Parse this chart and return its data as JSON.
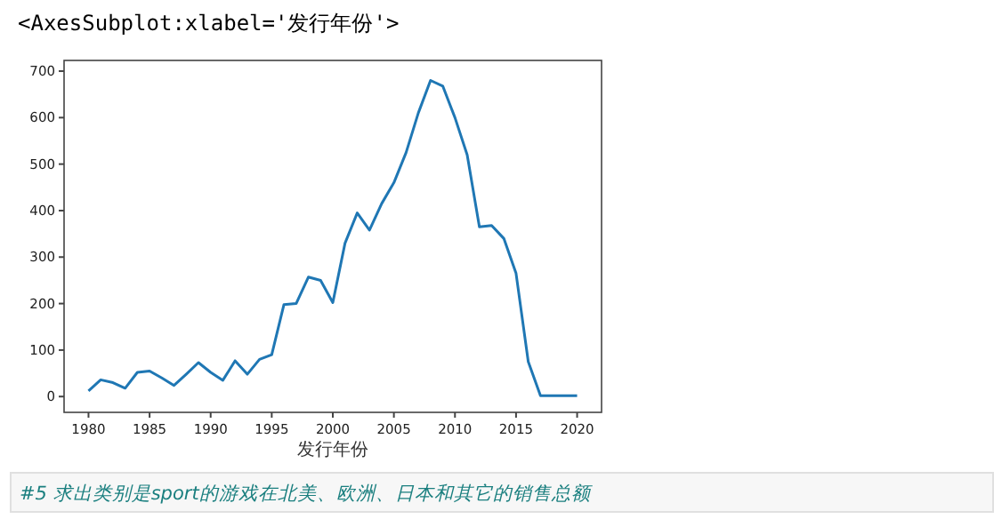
{
  "chart_data": {
    "type": "line",
    "title": "<AxesSubplot:xlabel='发行年份'>",
    "xlabel": "发行年份",
    "annotations": [
      "#5 求出类别是sport的游戏在北美、欧洲、日本和其它的销售总额"
    ],
    "x": [
      1980,
      1981,
      1982,
      1983,
      1984,
      1985,
      1986,
      1987,
      1988,
      1989,
      1990,
      1991,
      1992,
      1993,
      1994,
      1995,
      1996,
      1997,
      1998,
      1999,
      2000,
      2001,
      2002,
      2003,
      2004,
      2005,
      2006,
      2007,
      2008,
      2009,
      2010,
      2011,
      2012,
      2013,
      2014,
      2015,
      2016,
      2017,
      2018,
      2019,
      2020
    ],
    "series": [
      {
        "color": "#1f77b4",
        "values": [
          12,
          36,
          30,
          18,
          52,
          55,
          40,
          24,
          48,
          73,
          52,
          35,
          77,
          48,
          80,
          90,
          198,
          200,
          257,
          250,
          202,
          330,
          395,
          358,
          415,
          460,
          525,
          610,
          680,
          668,
          600,
          520,
          365,
          368,
          340,
          265,
          75,
          2,
          2,
          2,
          2
        ]
      }
    ],
    "xlim": [
      1978,
      2022
    ],
    "xticks": [
      1980,
      1985,
      1990,
      1995,
      2000,
      2005,
      2010,
      2015,
      2020
    ],
    "ylim": [
      -34,
      723
    ],
    "yticks": [
      0,
      100,
      200,
      300,
      400,
      500,
      600,
      700
    ],
    "grid": false,
    "marker": "none",
    "line_style": "solid"
  }
}
